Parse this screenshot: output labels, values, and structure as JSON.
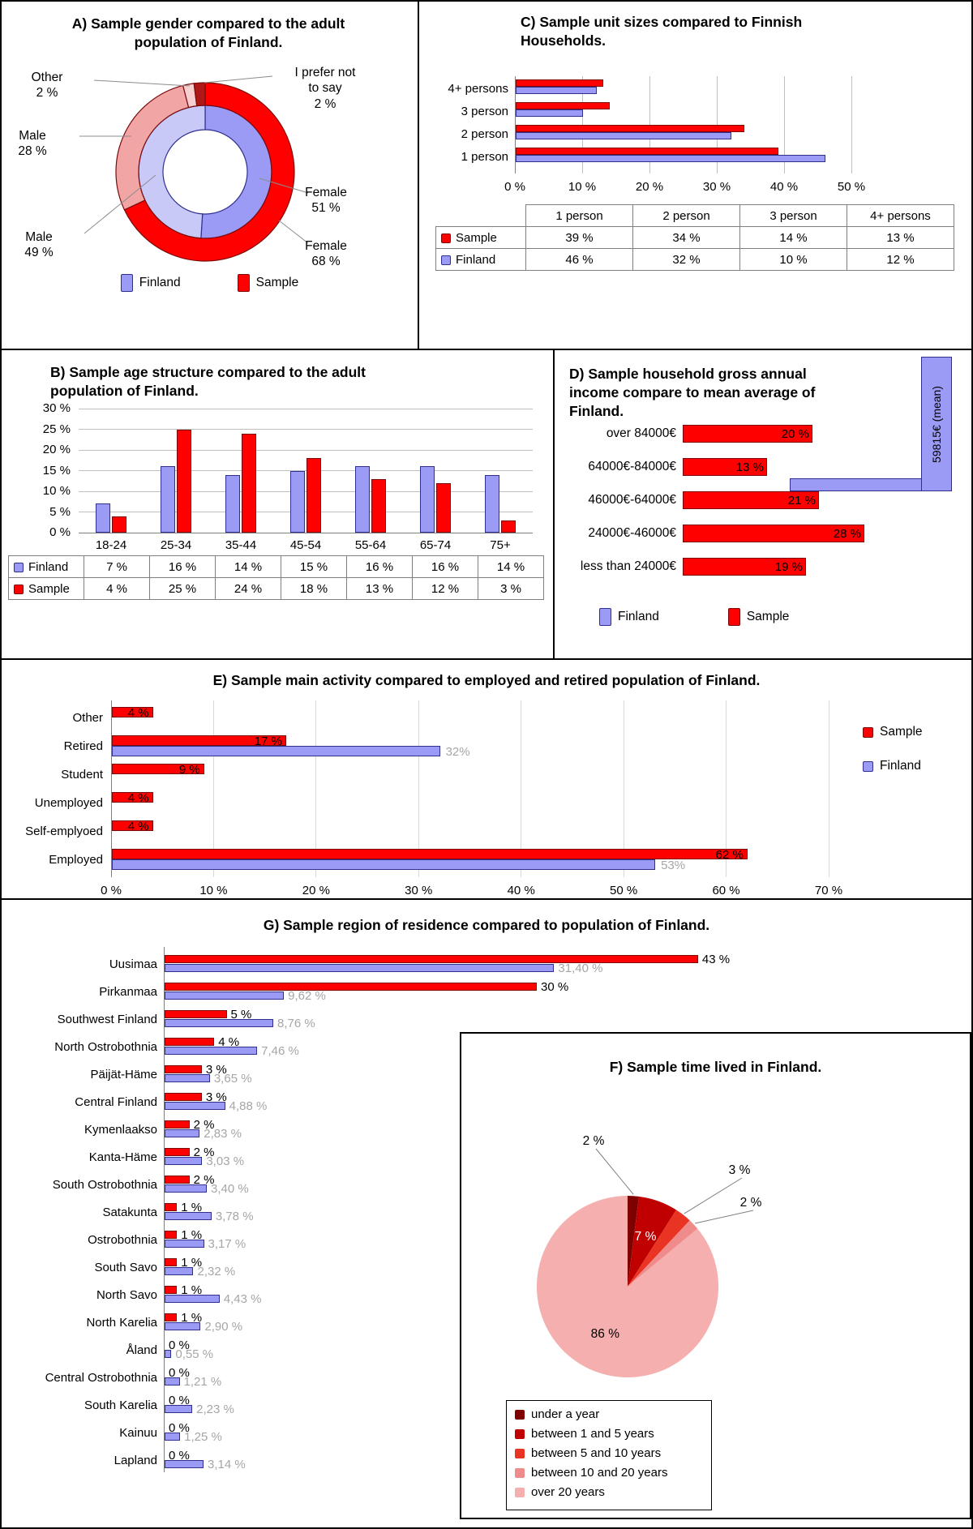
{
  "colors": {
    "finland_fill": "#9B9BF5",
    "finland_border": "#2F2F8F",
    "sample_fill": "#FF0000",
    "sample_border": "#7C0A0A",
    "grid_light": "#BFBFBF",
    "grid_lighter": "#D9D9D9",
    "grid_axis": "#808080",
    "gray_label": "#A6A6A6",
    "leader_line": "#8C8C8C"
  },
  "chart_data": [
    {
      "id": "A",
      "type": "donut",
      "title": "A) Sample gender compared to the adult population of Finland.",
      "rings": [
        {
          "name": "Finland",
          "position": "inner",
          "border": "#2F2F8F",
          "slices": [
            {
              "label": "Female",
              "value": 51,
              "color": "#9B9BF5"
            },
            {
              "label": "Male",
              "value": 49,
              "color": "#C9C9F8"
            }
          ]
        },
        {
          "name": "Sample",
          "position": "outer",
          "border": "#7C0A0A",
          "slices": [
            {
              "label": "Female",
              "value": 68,
              "color": "#FF0000"
            },
            {
              "label": "Male",
              "value": 28,
              "color": "#F2A5A5"
            },
            {
              "label": "Other",
              "value": 2,
              "color": "#F8CFCF"
            },
            {
              "label": "I prefer not to say",
              "value": 2,
              "color": "#B01818"
            }
          ]
        }
      ],
      "callouts": [
        [
          "Other",
          "2 %"
        ],
        [
          "Male",
          "28 %"
        ],
        [
          "Male",
          "49 %"
        ],
        [
          "I prefer not",
          "to say",
          "2 %"
        ],
        [
          "Female",
          "51 %"
        ],
        [
          "Female",
          "68 %"
        ]
      ],
      "legend": [
        "Finland",
        "Sample"
      ]
    },
    {
      "id": "B",
      "type": "bar",
      "title": "B) Sample age structure compared to the adult population of Finland.",
      "categories": [
        "18-24",
        "25-34",
        "35-44",
        "45-54",
        "55-64",
        "65-74",
        "75+"
      ],
      "series": [
        {
          "name": "Finland",
          "values": [
            7,
            16,
            14,
            15,
            16,
            16,
            14
          ]
        },
        {
          "name": "Sample",
          "values": [
            4,
            25,
            24,
            18,
            13,
            12,
            3
          ]
        }
      ],
      "ylim": [
        0,
        30
      ],
      "y_ticks": [
        "0 %",
        "5 %",
        "10 %",
        "15 %",
        "20 %",
        "25 %",
        "30 %"
      ],
      "table_rows": [
        {
          "name": "Finland",
          "values": [
            "7 %",
            "16 %",
            "14 %",
            "15 %",
            "16 %",
            "16 %",
            "14 %"
          ]
        },
        {
          "name": "Sample",
          "values": [
            "4 %",
            "25 %",
            "24 %",
            "18 %",
            "13 %",
            "12 %",
            "3 %"
          ]
        }
      ]
    },
    {
      "id": "C",
      "type": "bar-horizontal",
      "title": "C) Sample unit sizes compared to Finnish Households.",
      "categories": [
        "4+ persons",
        "3 person",
        "2 person",
        "1 person"
      ],
      "series": [
        {
          "name": "Sample",
          "values": [
            13,
            14,
            34,
            39
          ]
        },
        {
          "name": "Finland",
          "values": [
            12,
            10,
            32,
            46
          ]
        }
      ],
      "xlim": [
        0,
        50
      ],
      "x_ticks": [
        "0 %",
        "10 %",
        "20 %",
        "30 %",
        "40 %",
        "50 %"
      ],
      "table": {
        "header": [
          "",
          "1 person",
          "2 person",
          "3 person",
          "4+ persons"
        ],
        "rows": [
          {
            "name": "Sample",
            "values": [
              "39 %",
              "34 %",
              "14 %",
              "13 %"
            ]
          },
          {
            "name": "Finland",
            "values": [
              "46 %",
              "32 %",
              "10 %",
              "12 %"
            ]
          }
        ]
      }
    },
    {
      "id": "D",
      "type": "bar-horizontal",
      "title": "D) Sample household gross annual income compare to mean average of Finland.",
      "categories": [
        "over 84000€",
        "64000€-84000€",
        "46000€-64000€",
        "24000€-46000€",
        "less than 24000€"
      ],
      "series": [
        {
          "name": "Sample",
          "values": [
            20,
            13,
            21,
            28,
            19
          ]
        }
      ],
      "value_labels": [
        "20 %",
        "13 %",
        "21 %",
        "28 %",
        "19 %"
      ],
      "mean_label": "59815€ (mean)",
      "legend": [
        "Finland",
        "Sample"
      ]
    },
    {
      "id": "E",
      "type": "bar-horizontal",
      "title": "E) Sample main activity compared to employed and retired population of Finland.",
      "categories": [
        "Other",
        "Retired",
        "Student",
        "Unemployed",
        "Self-emplyoed",
        "Employed"
      ],
      "series": [
        {
          "name": "Sample",
          "values": [
            4,
            17,
            9,
            4,
            4,
            62
          ],
          "labels": [
            "4 %",
            "17 %",
            "9 %",
            "4 %",
            "4 %",
            "62 %"
          ]
        },
        {
          "name": "Finland",
          "values": [
            null,
            32,
            null,
            null,
            null,
            53
          ],
          "labels": [
            null,
            "32%",
            null,
            null,
            null,
            "53%"
          ]
        }
      ],
      "xlim": [
        0,
        70
      ],
      "x_ticks": [
        "0 %",
        "10 %",
        "20 %",
        "30 %",
        "40 %",
        "50 %",
        "60 %",
        "70 %"
      ],
      "legend": [
        "Sample",
        "Finland"
      ]
    },
    {
      "id": "F",
      "type": "pie",
      "title": "F) Sample time lived in Finland.",
      "slices": [
        {
          "label": "under a year",
          "value": 2,
          "color": "#7F0000"
        },
        {
          "label": "between 1 and 5 years",
          "value": 7,
          "color": "#C00000"
        },
        {
          "label": "between 5 and 10 years",
          "value": 3,
          "color": "#E93323"
        },
        {
          "label": "between 10 and 20 years",
          "value": 2,
          "color": "#F08B8B"
        },
        {
          "label": "over 20 years",
          "value": 86,
          "color": "#F5AFAF"
        }
      ],
      "value_labels": [
        "2 %",
        "7 %",
        "3 %",
        "2 %",
        "86 %"
      ]
    },
    {
      "id": "G",
      "type": "bar-horizontal",
      "title": "G) Sample region of residence compared to population of Finland.",
      "categories": [
        "Uusimaa",
        "Pirkanmaa",
        "Southwest Finland",
        "North Ostrobothnia",
        "Päijät-Häme",
        "Central Finland",
        "Kymenlaakso",
        "Kanta-Häme",
        "South Ostrobothnia",
        "Satakunta",
        "Ostrobothnia",
        "South Savo",
        "North Savo",
        "North Karelia",
        "Åland",
        "Central Ostrobothnia",
        "South Karelia",
        "Kainuu",
        "Lapland"
      ],
      "series": [
        {
          "name": "Sample",
          "values": [
            43,
            30,
            5,
            4,
            3,
            3,
            2,
            2,
            2,
            1,
            1,
            1,
            1,
            1,
            0,
            0,
            0,
            0,
            0
          ],
          "labels": [
            "43 %",
            "30 %",
            "5 %",
            "4 %",
            "3 %",
            "3 %",
            "2 %",
            "2 %",
            "2 %",
            "1 %",
            "1 %",
            "1 %",
            "1 %",
            "1 %",
            "0 %",
            "0 %",
            "0 %",
            "0 %",
            "0 %"
          ]
        },
        {
          "name": "Finland",
          "values": [
            31.4,
            9.62,
            8.76,
            7.46,
            3.65,
            4.88,
            2.83,
            3.03,
            3.4,
            3.78,
            3.17,
            2.32,
            4.43,
            2.9,
            0.55,
            1.21,
            2.23,
            1.25,
            3.14
          ],
          "labels": [
            "31,40 %",
            "9,62 %",
            "8,76 %",
            "7,46 %",
            "3,65 %",
            "4,88 %",
            "2,83 %",
            "3,03 %",
            "3,40 %",
            "3,78 %",
            "3,17 %",
            "2,32 %",
            "4,43 %",
            "2,90 %",
            "0,55 %",
            "1,21 %",
            "2,23 %",
            "1,25 %",
            "3,14 %"
          ]
        }
      ]
    }
  ]
}
